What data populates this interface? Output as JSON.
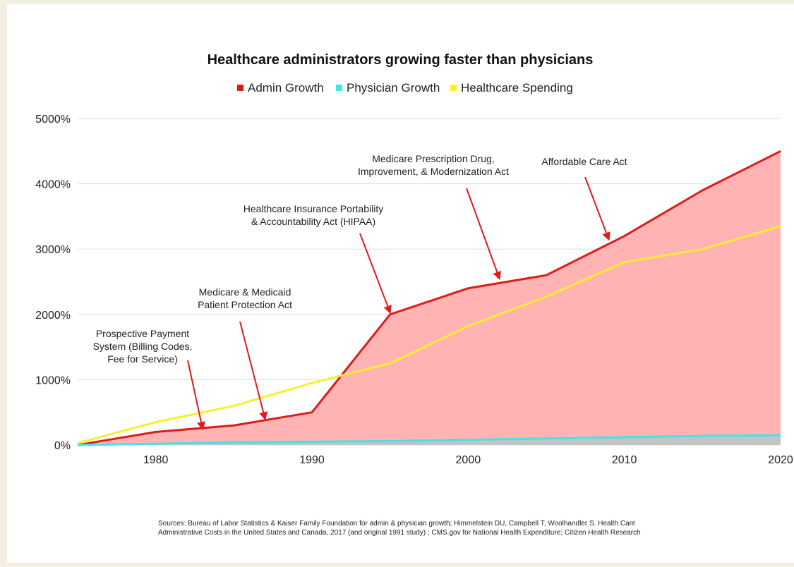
{
  "chart_data": {
    "type": "area",
    "title": "Healthcare administrators growing faster than physicians",
    "xlabel": "",
    "ylabel": "",
    "xlim": [
      1975,
      2020
    ],
    "ylim": [
      0,
      5000
    ],
    "x_ticks": [
      1980,
      1990,
      2000,
      2010,
      2020
    ],
    "y_ticks": [
      "0%",
      "1000%",
      "2000%",
      "3000%",
      "4000%",
      "5000%"
    ],
    "y_tick_values": [
      0,
      1000,
      2000,
      3000,
      4000,
      5000
    ],
    "grid": "horizontal",
    "legend_position": "top-center",
    "series": [
      {
        "name": "Admin Growth",
        "color": "#dd1c1c",
        "fill": "#ffb3b3",
        "x": [
          1975,
          1980,
          1985,
          1990,
          1995,
          2000,
          2005,
          2010,
          2015,
          2020
        ],
        "values": [
          0,
          200,
          300,
          500,
          2000,
          2400,
          2600,
          3200,
          3900,
          4500
        ]
      },
      {
        "name": "Physician Growth",
        "color": "#3ee6e6",
        "x": [
          1975,
          1980,
          1985,
          1990,
          1995,
          2000,
          2005,
          2010,
          2015,
          2020
        ],
        "values": [
          0,
          20,
          40,
          50,
          60,
          80,
          100,
          120,
          140,
          150
        ]
      },
      {
        "name": "Healthcare Spending",
        "color": "#f7ef2f",
        "x": [
          1975,
          1980,
          1985,
          1990,
          1995,
          2000,
          2005,
          2010,
          2015,
          2020
        ],
        "values": [
          30,
          350,
          600,
          950,
          1250,
          1820,
          2270,
          2800,
          3000,
          3350
        ]
      }
    ],
    "annotations": [
      {
        "id": "pps",
        "lines": [
          "Prospective Payment",
          "System (Billing Codes,",
          "Fee for Service)"
        ],
        "arrow_to": [
          1983,
          250
        ]
      },
      {
        "id": "medicare-medicaid",
        "lines": [
          "Medicare & Medicaid",
          "Patient Protection Act"
        ],
        "arrow_to": [
          1987,
          400
        ]
      },
      {
        "id": "hipaa",
        "lines": [
          "Healthcare Insurance Portability",
          "& Accountability Act (HIPAA)"
        ],
        "arrow_to": [
          1995,
          2030
        ]
      },
      {
        "id": "mma",
        "lines": [
          "Medicare Prescription Drug,",
          "Improvement, & Modernization Act"
        ],
        "arrow_to": [
          2002,
          2550
        ]
      },
      {
        "id": "aca",
        "lines": [
          "Affordable Care Act"
        ],
        "arrow_to": [
          2009,
          3150
        ]
      }
    ],
    "source": [
      "Sources: Bureau of Labor Statistics & Kaiser Family Foundation for admin & physician growth; Himmelstein DU, Campbell T, Woolhandler S. Health Care",
      "Administrative Costs in the United States and Canada, 2017 (and original 1991 study) ; CMS.gov for National Health Expenditure; Citizen Health Research"
    ]
  }
}
